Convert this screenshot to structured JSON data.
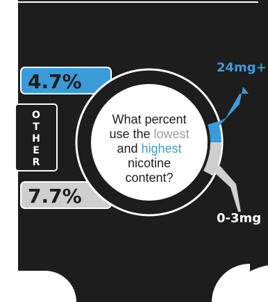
{
  "chart_data": {
    "type": "pie",
    "question": {
      "line1": "What percent",
      "line2_prefix": "use the ",
      "line2_highlight": "lowest",
      "line3_prefix": "and ",
      "line3_highlight": "highest",
      "line4": "nicotine",
      "line5": "content?"
    },
    "side_label": "OTHER",
    "side_label_letters": [
      "O",
      "T",
      "H",
      "E",
      "R"
    ],
    "slices": [
      {
        "name": "24mg+",
        "value": 4.7,
        "value_label": "4.7%",
        "color": "#3b9bd9"
      },
      {
        "name": "0-3mg",
        "value": 7.7,
        "value_label": "7.7%",
        "color": "#cfcfcf"
      }
    ]
  },
  "colors": {
    "panel": "#1d1d1d",
    "blue": "#3b9bd9",
    "gray": "#cfcfcf",
    "text_dark": "#1d1d1d",
    "text_gray": "#9a9a9a"
  }
}
